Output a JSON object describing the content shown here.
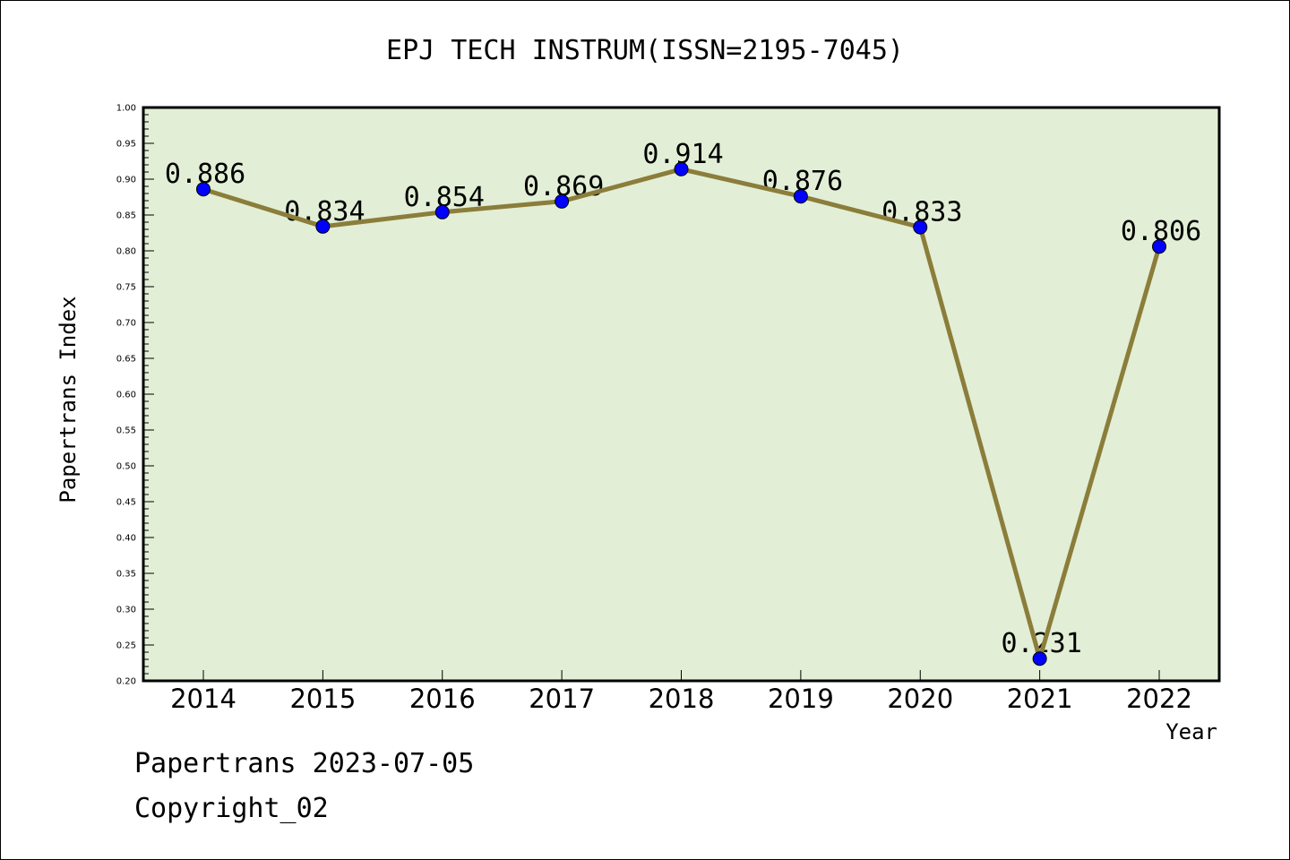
{
  "chart_data": {
    "type": "line",
    "title": "EPJ TECH INSTRUM(ISSN=2195-7045)",
    "xlabel": "Year",
    "ylabel": "Papertrans Index",
    "categories": [
      "2014",
      "2015",
      "2016",
      "2017",
      "2018",
      "2019",
      "2020",
      "2021",
      "2022"
    ],
    "values": [
      0.886,
      0.834,
      0.854,
      0.869,
      0.914,
      0.876,
      0.833,
      0.231,
      0.806
    ],
    "data_labels": [
      "0.886",
      "0.834",
      "0.854",
      "0.869",
      "0.914",
      "0.876",
      "0.833",
      "0.231",
      "0.806"
    ],
    "ylim": [
      0.2,
      1.0
    ],
    "y_ticks": [
      "0.20",
      "0.25",
      "0.30",
      "0.35",
      "0.40",
      "0.45",
      "0.50",
      "0.55",
      "0.60",
      "0.65",
      "0.70",
      "0.75",
      "0.80",
      "0.85",
      "0.90",
      "0.95",
      "1.00"
    ],
    "grid": false,
    "legend": "none",
    "colors": {
      "plot_background": "#e2efd6",
      "line": "#8b7d3a",
      "marker": "#0000ff",
      "axis": "#000000"
    }
  },
  "footer": {
    "source_line": "Papertrans 2023-07-05",
    "copyright_line": "Copyright_02"
  }
}
